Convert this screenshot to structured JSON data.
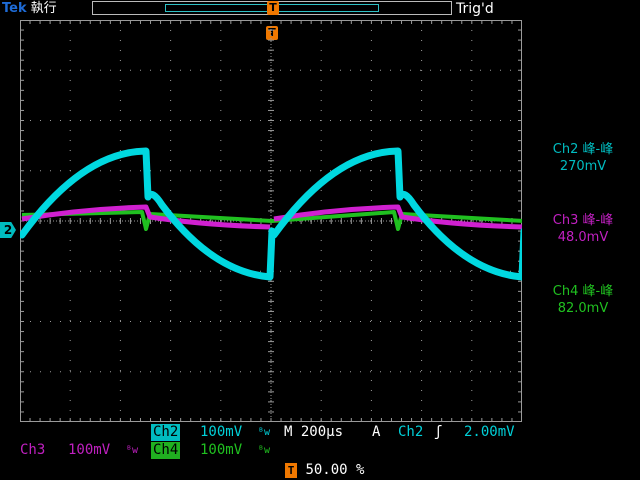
{
  "header": {
    "brand": "Tek",
    "mode": "執行",
    "trigger_status": "Trig'd"
  },
  "markers": {
    "trigger_icon_text": "T",
    "channel_marker": "2"
  },
  "measurements": [
    {
      "label": "Ch2 峰-峰",
      "value": "270mV",
      "color": "#00bcc0"
    },
    {
      "label": "Ch3 峰-峰",
      "value": "48.0mV",
      "color": "#c020c0"
    },
    {
      "label": "Ch4 峰-峰",
      "value": "82.0mV",
      "color": "#20c020"
    }
  ],
  "status": {
    "ch2_name": "Ch2",
    "ch2_scale": "100mV",
    "bw_symbol": "ᴮw",
    "timebase": "M 200µs",
    "trigger_source_label": "A",
    "trigger_source": "Ch2",
    "trigger_slope": "ʃ",
    "trigger_level": "2.00mV",
    "ch3_name": "Ch3",
    "ch3_scale": "100mV",
    "ch4_name": "Ch4",
    "ch4_scale": "100mV",
    "trigger_position": "50.00 %"
  },
  "colors": {
    "ch2": "#00d8e0",
    "ch3": "#d020d0",
    "ch4": "#20c020",
    "grid": "#9a9a9a",
    "trigger": "#f07800"
  }
}
